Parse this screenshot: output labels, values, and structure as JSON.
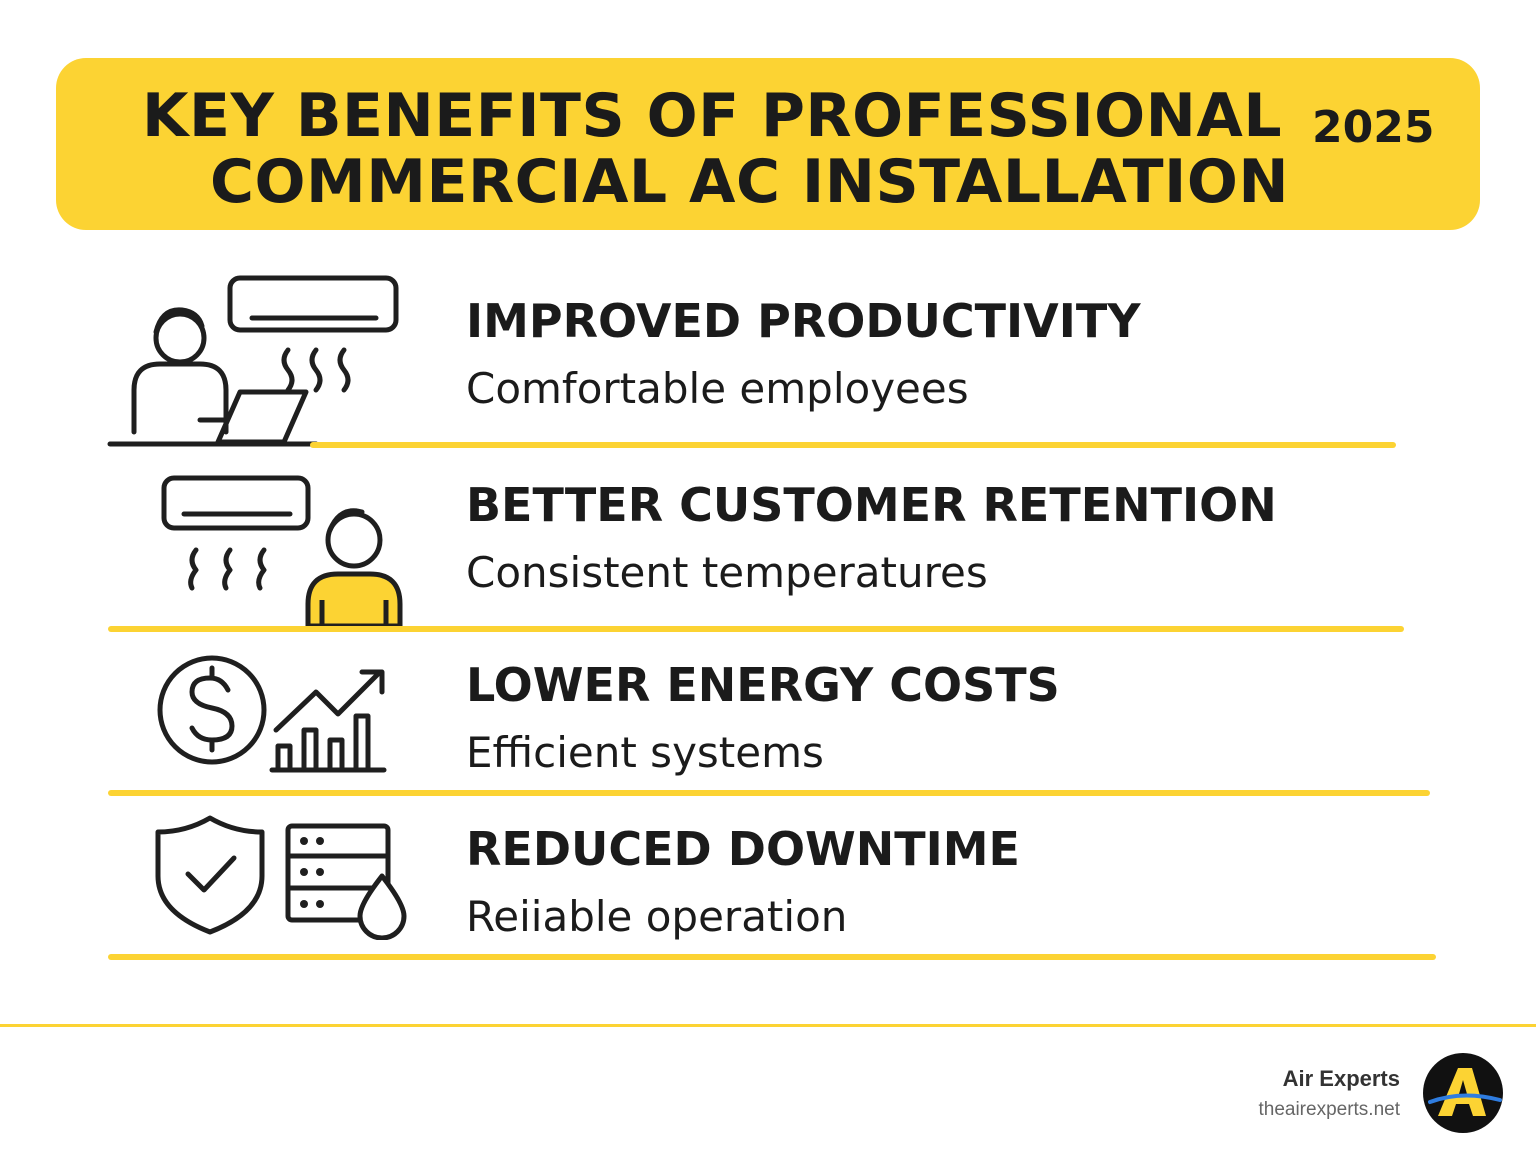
{
  "header": {
    "title_line1": "KEY BENEFITS OF PROFESSIONAL",
    "title_line2": "COMMERCIAL AC INSTALLATION",
    "year": "2025"
  },
  "benefits": [
    {
      "title": "IMPROVED PRODUCTIVITY",
      "subtitle": "Comfortable employees",
      "icon": "employee-laptop-ac-icon"
    },
    {
      "title": "BETTER CUSTOMER RETENTION",
      "subtitle": "Consistent temperatures",
      "icon": "customer-ac-icon"
    },
    {
      "title": "LOWER ENERGY COSTS",
      "subtitle": "Efficient systems",
      "icon": "dollar-growth-chart-icon"
    },
    {
      "title": "REDUCED DOWNTIME",
      "subtitle": "Reiiable operation",
      "icon": "shield-server-icon"
    }
  ],
  "footer": {
    "brand_name": "Air Experts",
    "brand_url": "theairexperts.net",
    "logo_letter": "A"
  },
  "colors": {
    "accent": "#fcd333",
    "text": "#1b1b1b",
    "logo_bg": "#111111",
    "logo_blue": "#2f7de0"
  }
}
